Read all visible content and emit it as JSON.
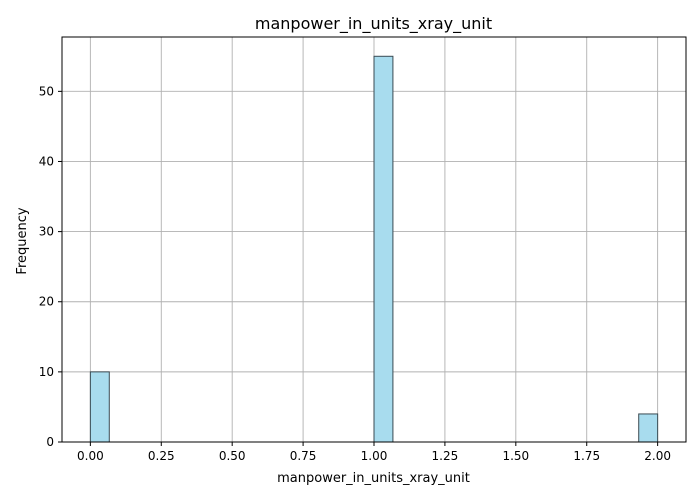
{
  "chart_data": {
    "type": "bar",
    "title": "manpower_in_units_xray_unit",
    "xlabel": "manpower_in_units_xray_unit",
    "ylabel": "Frequency",
    "bins": [
      {
        "x_start": 0.0,
        "x_end": 0.0667,
        "count": 10
      },
      {
        "x_start": 1.0,
        "x_end": 1.0667,
        "count": 55
      },
      {
        "x_start": 1.9333,
        "x_end": 2.0,
        "count": 4
      }
    ],
    "xlim": [
      -0.1,
      2.1
    ],
    "ylim": [
      0,
      57.75
    ],
    "xticks": [
      "0.00",
      "0.25",
      "0.50",
      "0.75",
      "1.00",
      "1.25",
      "1.50",
      "1.75",
      "2.00"
    ],
    "yticks": [
      "0",
      "10",
      "20",
      "30",
      "40",
      "50"
    ],
    "grid": true,
    "colors": {
      "bar_fill": "#a8dcee",
      "bar_edge": "#3a4a52",
      "grid": "#b0b0b0",
      "axis": "#000000"
    }
  }
}
